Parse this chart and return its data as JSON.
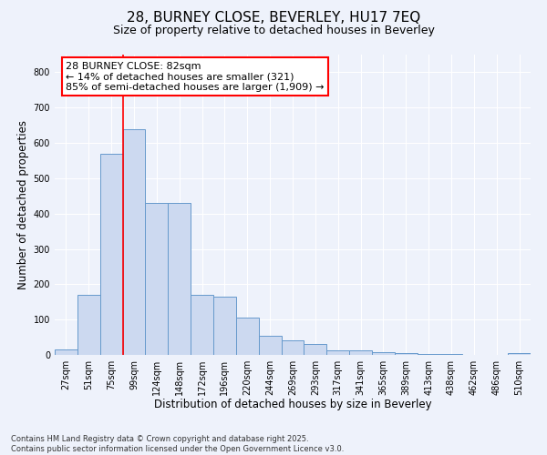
{
  "title_line1": "28, BURNEY CLOSE, BEVERLEY, HU17 7EQ",
  "title_line2": "Size of property relative to detached houses in Beverley",
  "xlabel": "Distribution of detached houses by size in Beverley",
  "ylabel": "Number of detached properties",
  "bar_color": "#ccd9f0",
  "bar_edge_color": "#6699cc",
  "categories": [
    "27sqm",
    "51sqm",
    "75sqm",
    "99sqm",
    "124sqm",
    "148sqm",
    "172sqm",
    "196sqm",
    "220sqm",
    "244sqm",
    "269sqm",
    "293sqm",
    "317sqm",
    "341sqm",
    "365sqm",
    "389sqm",
    "413sqm",
    "438sqm",
    "462sqm",
    "486sqm",
    "510sqm"
  ],
  "values": [
    15,
    170,
    570,
    640,
    430,
    430,
    170,
    165,
    105,
    55,
    40,
    30,
    12,
    12,
    8,
    5,
    3,
    3,
    1,
    1,
    5
  ],
  "ylim": [
    0,
    850
  ],
  "yticks": [
    0,
    100,
    200,
    300,
    400,
    500,
    600,
    700,
    800
  ],
  "property_label": "28 BURNEY CLOSE: 82sqm",
  "pct_smaller": "14% of detached houses are smaller (321)",
  "pct_larger": "85% of semi-detached houses are larger (1,909)",
  "vline_x": 2.5,
  "footnote": "Contains HM Land Registry data © Crown copyright and database right 2025.\nContains public sector information licensed under the Open Government Licence v3.0.",
  "background_color": "#eef2fb",
  "plot_bg_color": "#eef2fb",
  "grid_color": "#ffffff",
  "title1_fontsize": 11,
  "title2_fontsize": 9,
  "axis_label_fontsize": 8.5,
  "tick_fontsize": 7,
  "annot_fontsize": 8
}
